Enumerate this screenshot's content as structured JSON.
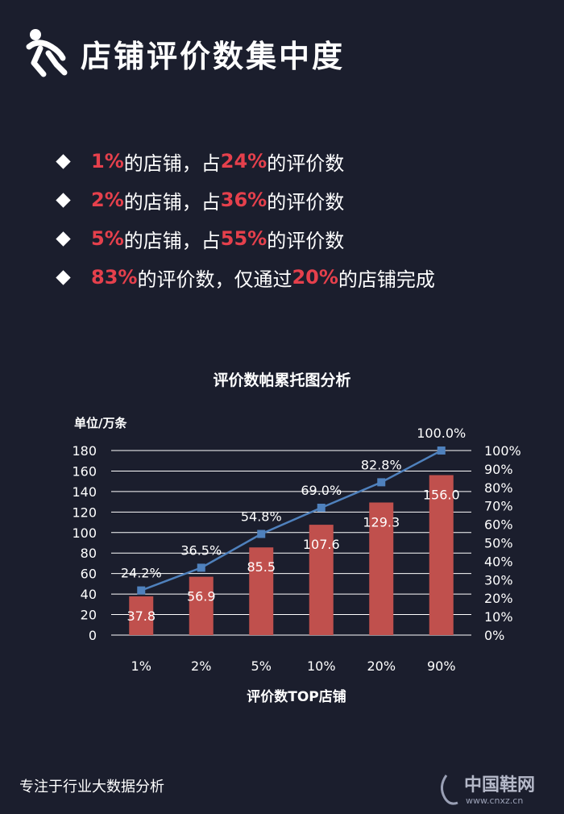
{
  "header": {
    "title": "店铺评价数集中度",
    "icon": "running-person-icon"
  },
  "bullets": [
    {
      "p1": "1%",
      "t1": "的店铺，占",
      "p2": "24%",
      "t2": "的评价数"
    },
    {
      "p1": "2%",
      "t1": "的店铺，占",
      "p2": "36%",
      "t2": "的评价数"
    },
    {
      "p1": "5%",
      "t1": "的店铺，占",
      "p2": "55%",
      "t2": "的评价数"
    },
    {
      "p1": "83%",
      "t1": "的评价数，仅通过",
      "p2": "20%",
      "t2": "的店铺完成"
    }
  ],
  "chart_data": {
    "type": "bar",
    "title": "评价数帕累托图分析",
    "xlabel": "评价数TOP店铺",
    "ylabel": "单位/万条",
    "categories": [
      "1%",
      "2%",
      "5%",
      "10%",
      "20%",
      "90%"
    ],
    "series": [
      {
        "type": "bar",
        "values": [
          37.8,
          56.9,
          85.5,
          107.6,
          129.3,
          156.0
        ],
        "labels": [
          "37.8",
          "56.9",
          "85.5",
          "107.6",
          "129.3",
          "156.0"
        ],
        "color": "#c0504d"
      },
      {
        "type": "line",
        "values": [
          24.2,
          36.5,
          54.8,
          69.0,
          82.8,
          100.0
        ],
        "labels": [
          "24.2%",
          "36.5%",
          "54.8%",
          "69.0%",
          "82.8%",
          "100.0%"
        ],
        "color": "#4f81bd",
        "axis": "right"
      }
    ],
    "ylim": [
      0,
      180
    ],
    "yticks": [
      "0",
      "20",
      "40",
      "60",
      "80",
      "100",
      "120",
      "140",
      "160",
      "180"
    ],
    "y2lim": [
      0,
      100
    ],
    "y2ticks": [
      "0%",
      "10%",
      "20%",
      "30%",
      "40%",
      "50%",
      "60%",
      "70%",
      "80%",
      "90%",
      "100%"
    ],
    "grid": true,
    "legend": "none"
  },
  "footer": {
    "text": "专注于行业大数据分析"
  },
  "watermark": {
    "cn": "中国鞋网",
    "url": "www.cnxz.cn"
  },
  "colors": {
    "background": "#1b1e2d",
    "accent": "#e5404c",
    "bar": "#c0504d",
    "line": "#4f81bd"
  }
}
